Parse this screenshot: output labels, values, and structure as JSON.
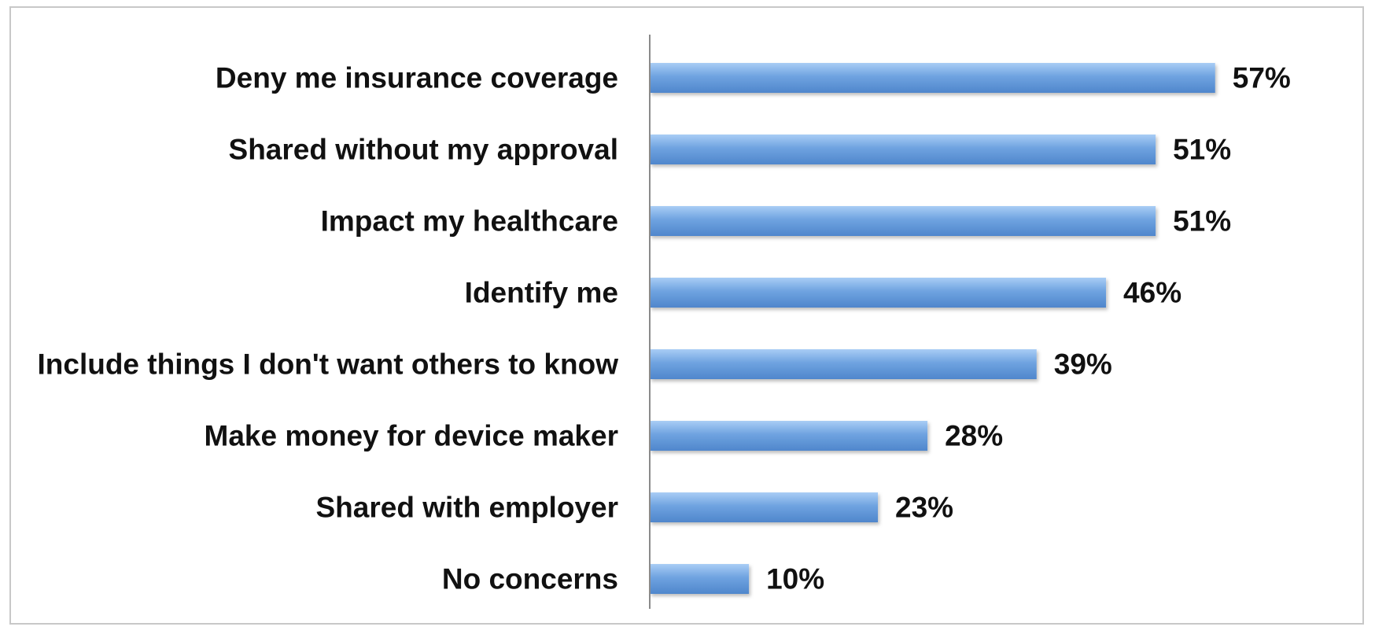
{
  "chart_data": {
    "type": "bar",
    "orientation": "horizontal",
    "categories": [
      "Deny me insurance coverage",
      "Shared without my approval",
      "Impact my healthcare",
      "Identify me",
      "Include things I don't want others to know",
      "Make money for device maker",
      "Shared with employer",
      "No concerns"
    ],
    "values": [
      57,
      51,
      51,
      46,
      39,
      28,
      23,
      10
    ],
    "value_labels": [
      "57%",
      "51%",
      "51%",
      "46%",
      "39%",
      "28%",
      "23%",
      "10%"
    ],
    "unit": "%",
    "xlim": [
      0,
      60
    ],
    "grid": false,
    "legend": "none",
    "bar_color": "#6fa3e0",
    "bar_color_light": "#a9cdf5",
    "bar_color_dark": "#4f86cc",
    "axis_color": "#8a8a8a",
    "frame_color": "#c8c8c8"
  }
}
